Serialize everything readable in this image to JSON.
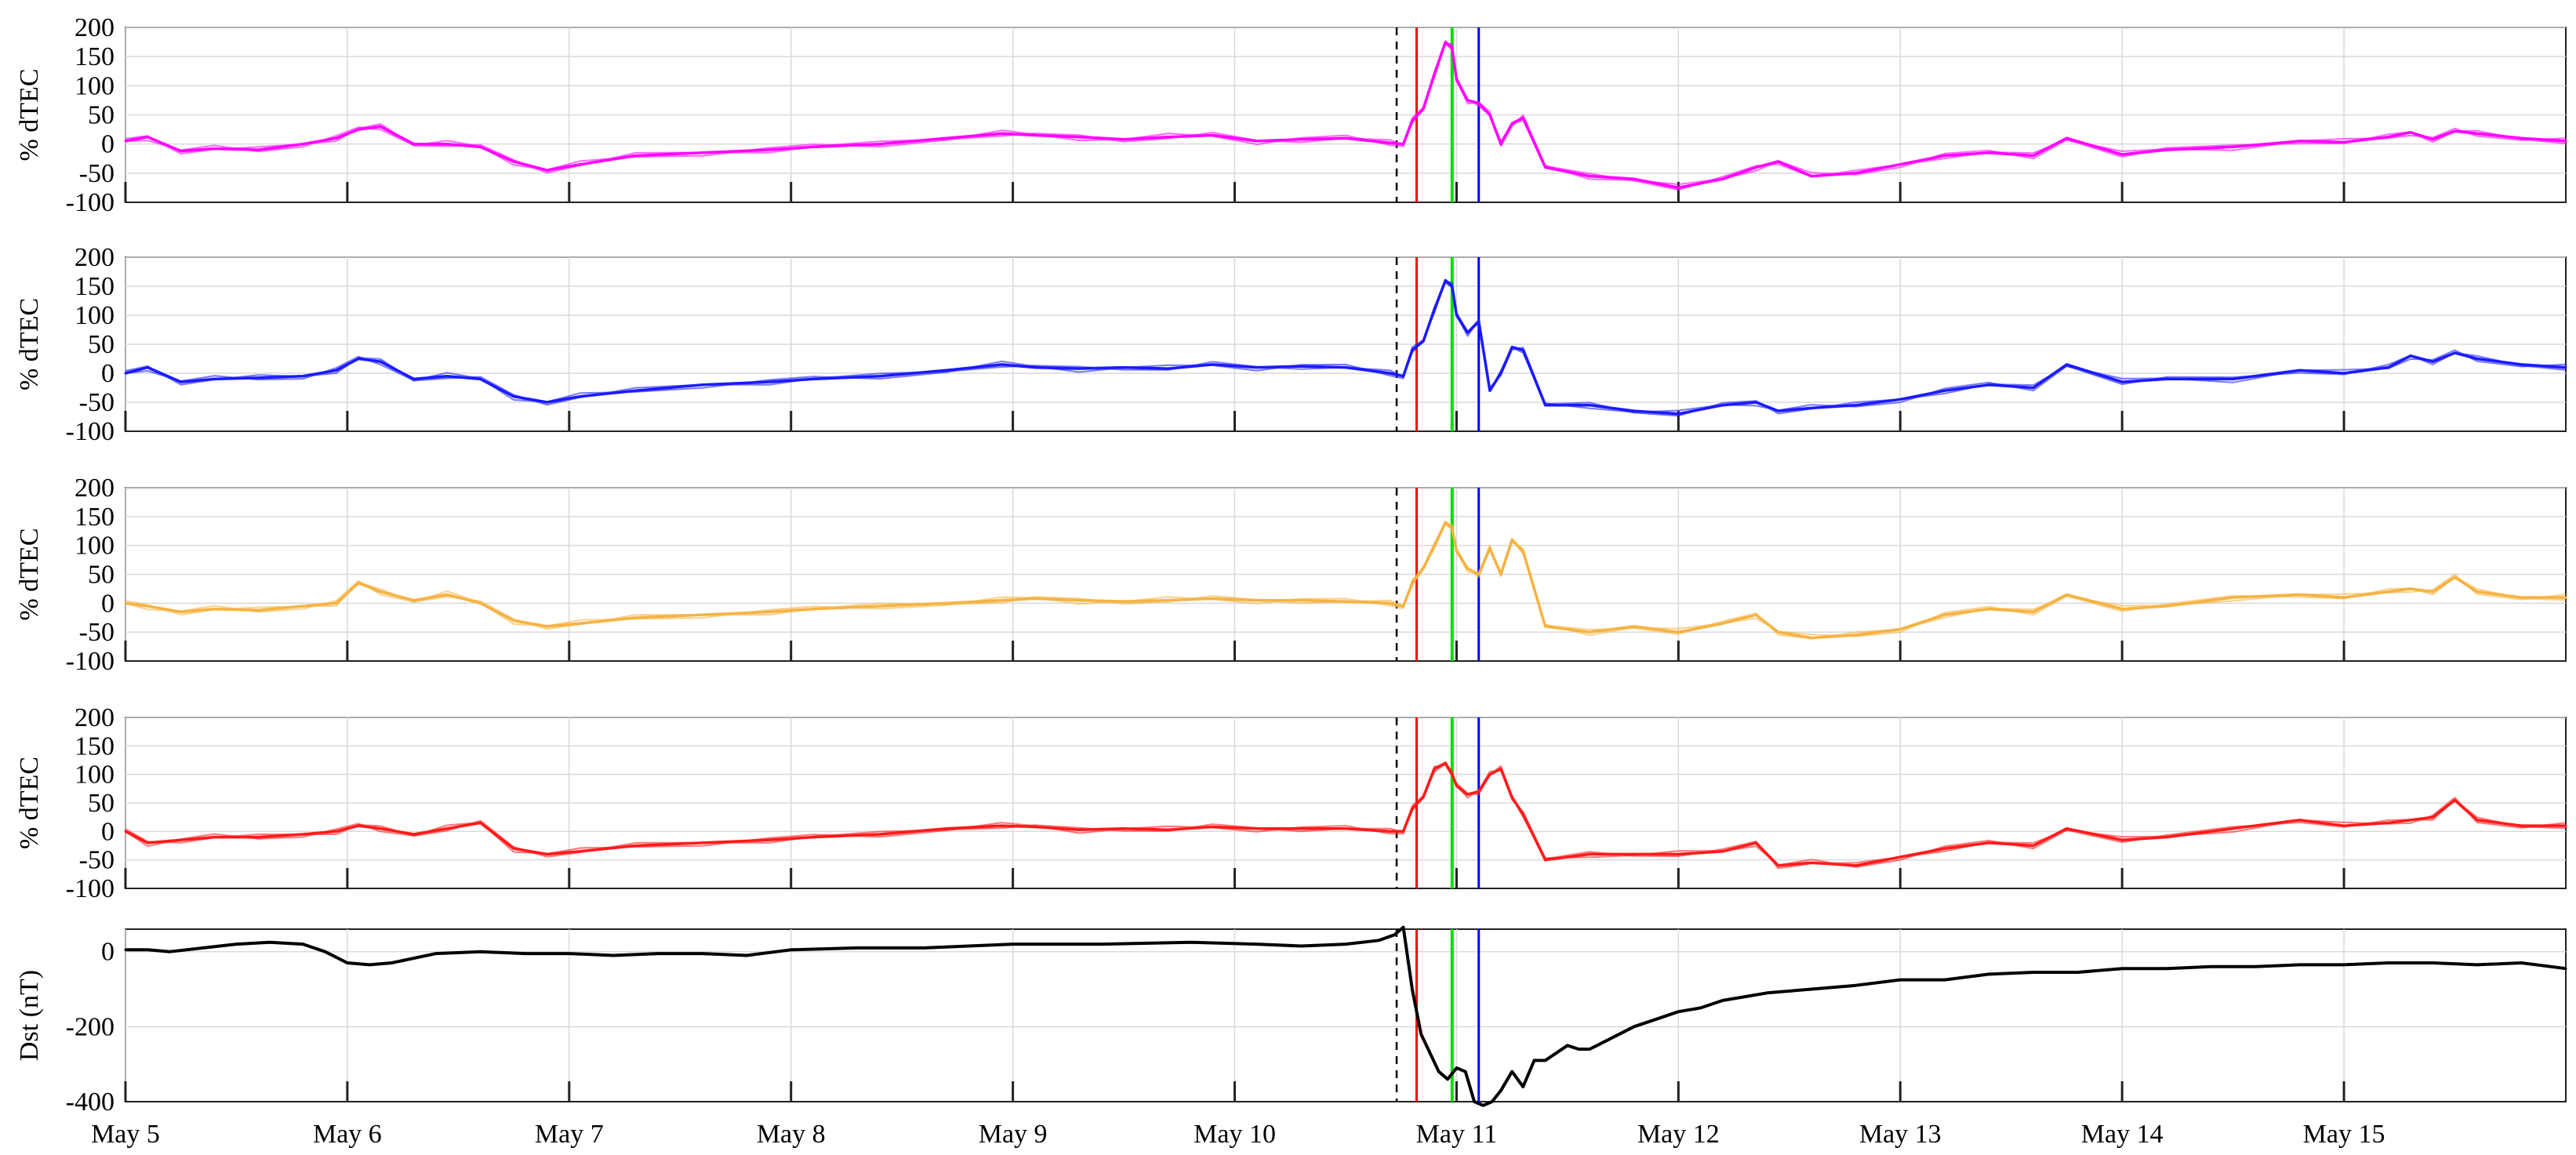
{
  "chart_data": [
    {
      "type": "line",
      "ylabel": "% dTEC",
      "ylim": [
        -100,
        200
      ],
      "yticks": [
        -100,
        -50,
        0,
        50,
        100,
        150,
        200
      ],
      "color": "#ff00ff",
      "grid": true,
      "series": [
        {
          "x": [
            5.0,
            5.1,
            5.25,
            5.4,
            5.6,
            5.8,
            5.95,
            6.05,
            6.15,
            6.3,
            6.45,
            6.6,
            6.75,
            6.9,
            7.05,
            7.3,
            7.6,
            7.9,
            8.1,
            8.4,
            8.7,
            8.95,
            9.1,
            9.3,
            9.5,
            9.7,
            9.9,
            10.1,
            10.3,
            10.5,
            10.7,
            10.76,
            10.8,
            10.85,
            10.9,
            10.95,
            10.98,
            11.0,
            11.05,
            11.1,
            11.15,
            11.2,
            11.25,
            11.3,
            11.4,
            11.6,
            11.8,
            12.0,
            12.2,
            12.35,
            12.45,
            12.6,
            12.8,
            13.0,
            13.2,
            13.4,
            13.6,
            13.75,
            14.0,
            14.2,
            14.5,
            14.8,
            15.0,
            15.2,
            15.3,
            15.4,
            15.5,
            15.6,
            15.8,
            16.0
          ],
          "y": [
            5,
            12,
            -12,
            -8,
            -10,
            0,
            10,
            25,
            30,
            0,
            0,
            -5,
            -30,
            -45,
            -35,
            -20,
            -15,
            -10,
            -5,
            0,
            10,
            18,
            15,
            12,
            8,
            12,
            15,
            5,
            8,
            10,
            2,
            0,
            40,
            60,
            120,
            175,
            165,
            110,
            75,
            70,
            50,
            0,
            35,
            45,
            -40,
            -55,
            -60,
            -75,
            -60,
            -40,
            -30,
            -55,
            -50,
            -35,
            -20,
            -15,
            -20,
            10,
            -18,
            -10,
            -5,
            5,
            3,
            12,
            20,
            8,
            22,
            18,
            10,
            5
          ]
        }
      ]
    },
    {
      "type": "line",
      "ylabel": "% dTEC",
      "ylim": [
        -100,
        200
      ],
      "yticks": [
        -100,
        -50,
        0,
        50,
        100,
        150,
        200
      ],
      "color": "#1a1aff",
      "grid": true,
      "series": [
        {
          "x": [
            5.0,
            5.1,
            5.25,
            5.4,
            5.6,
            5.8,
            5.95,
            6.05,
            6.15,
            6.3,
            6.45,
            6.6,
            6.75,
            6.9,
            7.05,
            7.3,
            7.6,
            7.9,
            8.1,
            8.4,
            8.7,
            8.95,
            9.1,
            9.3,
            9.5,
            9.7,
            9.9,
            10.1,
            10.3,
            10.5,
            10.7,
            10.76,
            10.8,
            10.85,
            10.9,
            10.95,
            10.98,
            11.0,
            11.05,
            11.1,
            11.15,
            11.2,
            11.25,
            11.3,
            11.4,
            11.6,
            11.8,
            12.0,
            12.2,
            12.35,
            12.45,
            12.6,
            12.8,
            13.0,
            13.2,
            13.4,
            13.6,
            13.75,
            14.0,
            14.2,
            14.5,
            14.8,
            15.0,
            15.2,
            15.3,
            15.4,
            15.5,
            15.6,
            15.8,
            16.0
          ],
          "y": [
            0,
            10,
            -15,
            -10,
            -8,
            -5,
            5,
            25,
            20,
            -10,
            -5,
            -10,
            -40,
            -50,
            -40,
            -30,
            -20,
            -15,
            -10,
            -5,
            5,
            15,
            10,
            8,
            10,
            8,
            15,
            10,
            12,
            10,
            0,
            -5,
            40,
            55,
            110,
            160,
            150,
            100,
            70,
            90,
            -30,
            0,
            45,
            40,
            -55,
            -55,
            -65,
            -70,
            -55,
            -50,
            -65,
            -60,
            -55,
            -45,
            -30,
            -20,
            -25,
            15,
            -15,
            -10,
            -10,
            5,
            0,
            10,
            30,
            20,
            35,
            25,
            15,
            10
          ]
        }
      ]
    },
    {
      "type": "line",
      "ylabel": "% dTEC",
      "ylim": [
        -100,
        200
      ],
      "yticks": [
        -100,
        -50,
        0,
        50,
        100,
        150,
        200
      ],
      "color": "#f5b342",
      "grid": true,
      "series": [
        {
          "x": [
            5.0,
            5.1,
            5.25,
            5.4,
            5.6,
            5.8,
            5.95,
            6.05,
            6.15,
            6.3,
            6.45,
            6.6,
            6.75,
            6.9,
            7.05,
            7.3,
            7.6,
            7.9,
            8.1,
            8.4,
            8.7,
            8.95,
            9.1,
            9.3,
            9.5,
            9.7,
            9.9,
            10.1,
            10.3,
            10.5,
            10.7,
            10.76,
            10.8,
            10.85,
            10.9,
            10.95,
            10.98,
            11.0,
            11.05,
            11.1,
            11.15,
            11.2,
            11.25,
            11.3,
            11.4,
            11.6,
            11.8,
            12.0,
            12.2,
            12.35,
            12.45,
            12.6,
            12.8,
            13.0,
            13.2,
            13.4,
            13.6,
            13.75,
            14.0,
            14.2,
            14.5,
            14.8,
            15.0,
            15.2,
            15.3,
            15.4,
            15.5,
            15.6,
            15.8,
            16.0
          ],
          "y": [
            0,
            -5,
            -15,
            -10,
            -12,
            -5,
            0,
            35,
            20,
            5,
            15,
            0,
            -30,
            -40,
            -35,
            -25,
            -20,
            -15,
            -10,
            -5,
            0,
            5,
            8,
            5,
            3,
            5,
            8,
            5,
            5,
            3,
            0,
            -5,
            35,
            60,
            100,
            140,
            130,
            90,
            60,
            50,
            95,
            50,
            110,
            90,
            -40,
            -50,
            -40,
            -50,
            -35,
            -20,
            -50,
            -60,
            -55,
            -45,
            -20,
            -10,
            -15,
            15,
            -10,
            -5,
            10,
            15,
            10,
            20,
            25,
            20,
            45,
            20,
            10,
            10
          ]
        }
      ]
    },
    {
      "type": "line",
      "ylabel": "% dTEC",
      "ylim": [
        -100,
        200
      ],
      "yticks": [
        -100,
        -50,
        0,
        50,
        100,
        150,
        200
      ],
      "color": "#ff1a1a",
      "grid": true,
      "series": [
        {
          "x": [
            5.0,
            5.1,
            5.25,
            5.4,
            5.6,
            5.8,
            5.95,
            6.05,
            6.15,
            6.3,
            6.45,
            6.6,
            6.75,
            6.9,
            7.05,
            7.3,
            7.6,
            7.9,
            8.1,
            8.4,
            8.7,
            8.95,
            9.1,
            9.3,
            9.5,
            9.7,
            9.9,
            10.1,
            10.3,
            10.5,
            10.7,
            10.76,
            10.8,
            10.85,
            10.9,
            10.95,
            10.98,
            11.0,
            11.05,
            11.1,
            11.15,
            11.2,
            11.25,
            11.3,
            11.4,
            11.6,
            11.8,
            12.0,
            12.2,
            12.35,
            12.45,
            12.6,
            12.8,
            13.0,
            13.2,
            13.4,
            13.6,
            13.75,
            14.0,
            14.2,
            14.5,
            14.8,
            15.0,
            15.2,
            15.3,
            15.4,
            15.5,
            15.6,
            15.8,
            16.0
          ],
          "y": [
            0,
            -20,
            -15,
            -10,
            -10,
            -5,
            0,
            10,
            5,
            -5,
            5,
            15,
            -30,
            -40,
            -35,
            -25,
            -20,
            -15,
            -10,
            -5,
            5,
            10,
            8,
            3,
            5,
            3,
            8,
            5,
            5,
            5,
            0,
            0,
            40,
            60,
            110,
            120,
            100,
            80,
            65,
            70,
            100,
            110,
            60,
            30,
            -50,
            -40,
            -40,
            -40,
            -35,
            -20,
            -60,
            -55,
            -60,
            -45,
            -30,
            -20,
            -25,
            5,
            -15,
            -10,
            5,
            20,
            10,
            15,
            20,
            25,
            55,
            20,
            10,
            10
          ]
        }
      ]
    },
    {
      "type": "line",
      "ylabel": "Dst (nT)",
      "ylim": [
        -400,
        60
      ],
      "yticks": [
        -400,
        -200,
        0
      ],
      "color": "#000000",
      "grid": true,
      "xticklabels": [
        "May 5",
        "May 6",
        "May 7",
        "May 8",
        "May 9",
        "May 10",
        "May 11",
        "May 12",
        "May 13",
        "May 14",
        "May 15"
      ],
      "series": [
        {
          "x": [
            5.0,
            5.1,
            5.2,
            5.35,
            5.5,
            5.65,
            5.8,
            5.9,
            6.0,
            6.1,
            6.2,
            6.4,
            6.6,
            6.8,
            7.0,
            7.2,
            7.4,
            7.6,
            7.8,
            8.0,
            8.3,
            8.6,
            9.0,
            9.4,
            9.8,
            10.1,
            10.3,
            10.5,
            10.65,
            10.72,
            10.76,
            10.8,
            10.84,
            10.88,
            10.92,
            10.96,
            11.0,
            11.04,
            11.08,
            11.12,
            11.16,
            11.2,
            11.25,
            11.3,
            11.35,
            11.4,
            11.45,
            11.5,
            11.55,
            11.6,
            11.7,
            11.8,
            11.9,
            12.0,
            12.1,
            12.2,
            12.3,
            12.4,
            12.6,
            12.8,
            13.0,
            13.2,
            13.4,
            13.6,
            13.8,
            14.0,
            14.2,
            14.4,
            14.6,
            14.8,
            15.0,
            15.2,
            15.4,
            15.6,
            15.8,
            16.0
          ],
          "y": [
            5,
            5,
            0,
            10,
            20,
            25,
            20,
            0,
            -30,
            -35,
            -30,
            -5,
            0,
            -5,
            -5,
            -10,
            -5,
            -5,
            -10,
            5,
            10,
            10,
            20,
            20,
            25,
            20,
            15,
            20,
            30,
            45,
            65,
            -100,
            -220,
            -270,
            -320,
            -340,
            -310,
            -320,
            -400,
            -410,
            -400,
            -370,
            -320,
            -360,
            -290,
            -290,
            -270,
            -250,
            -260,
            -260,
            -230,
            -200,
            -180,
            -160,
            -150,
            -130,
            -120,
            -110,
            -100,
            -90,
            -75,
            -75,
            -60,
            -55,
            -55,
            -45,
            -45,
            -40,
            -40,
            -35,
            -35,
            -30,
            -30,
            -35,
            -30,
            -45
          ]
        }
      ]
    }
  ],
  "event_lines": [
    {
      "x": 10.73,
      "color": "#000000",
      "style": "dashed"
    },
    {
      "x": 10.82,
      "color": "#ff0000",
      "style": "solid"
    },
    {
      "x": 10.98,
      "color": "#00dd00",
      "style": "solid"
    },
    {
      "x": 11.1,
      "color": "#0000ff",
      "style": "solid"
    }
  ]
}
